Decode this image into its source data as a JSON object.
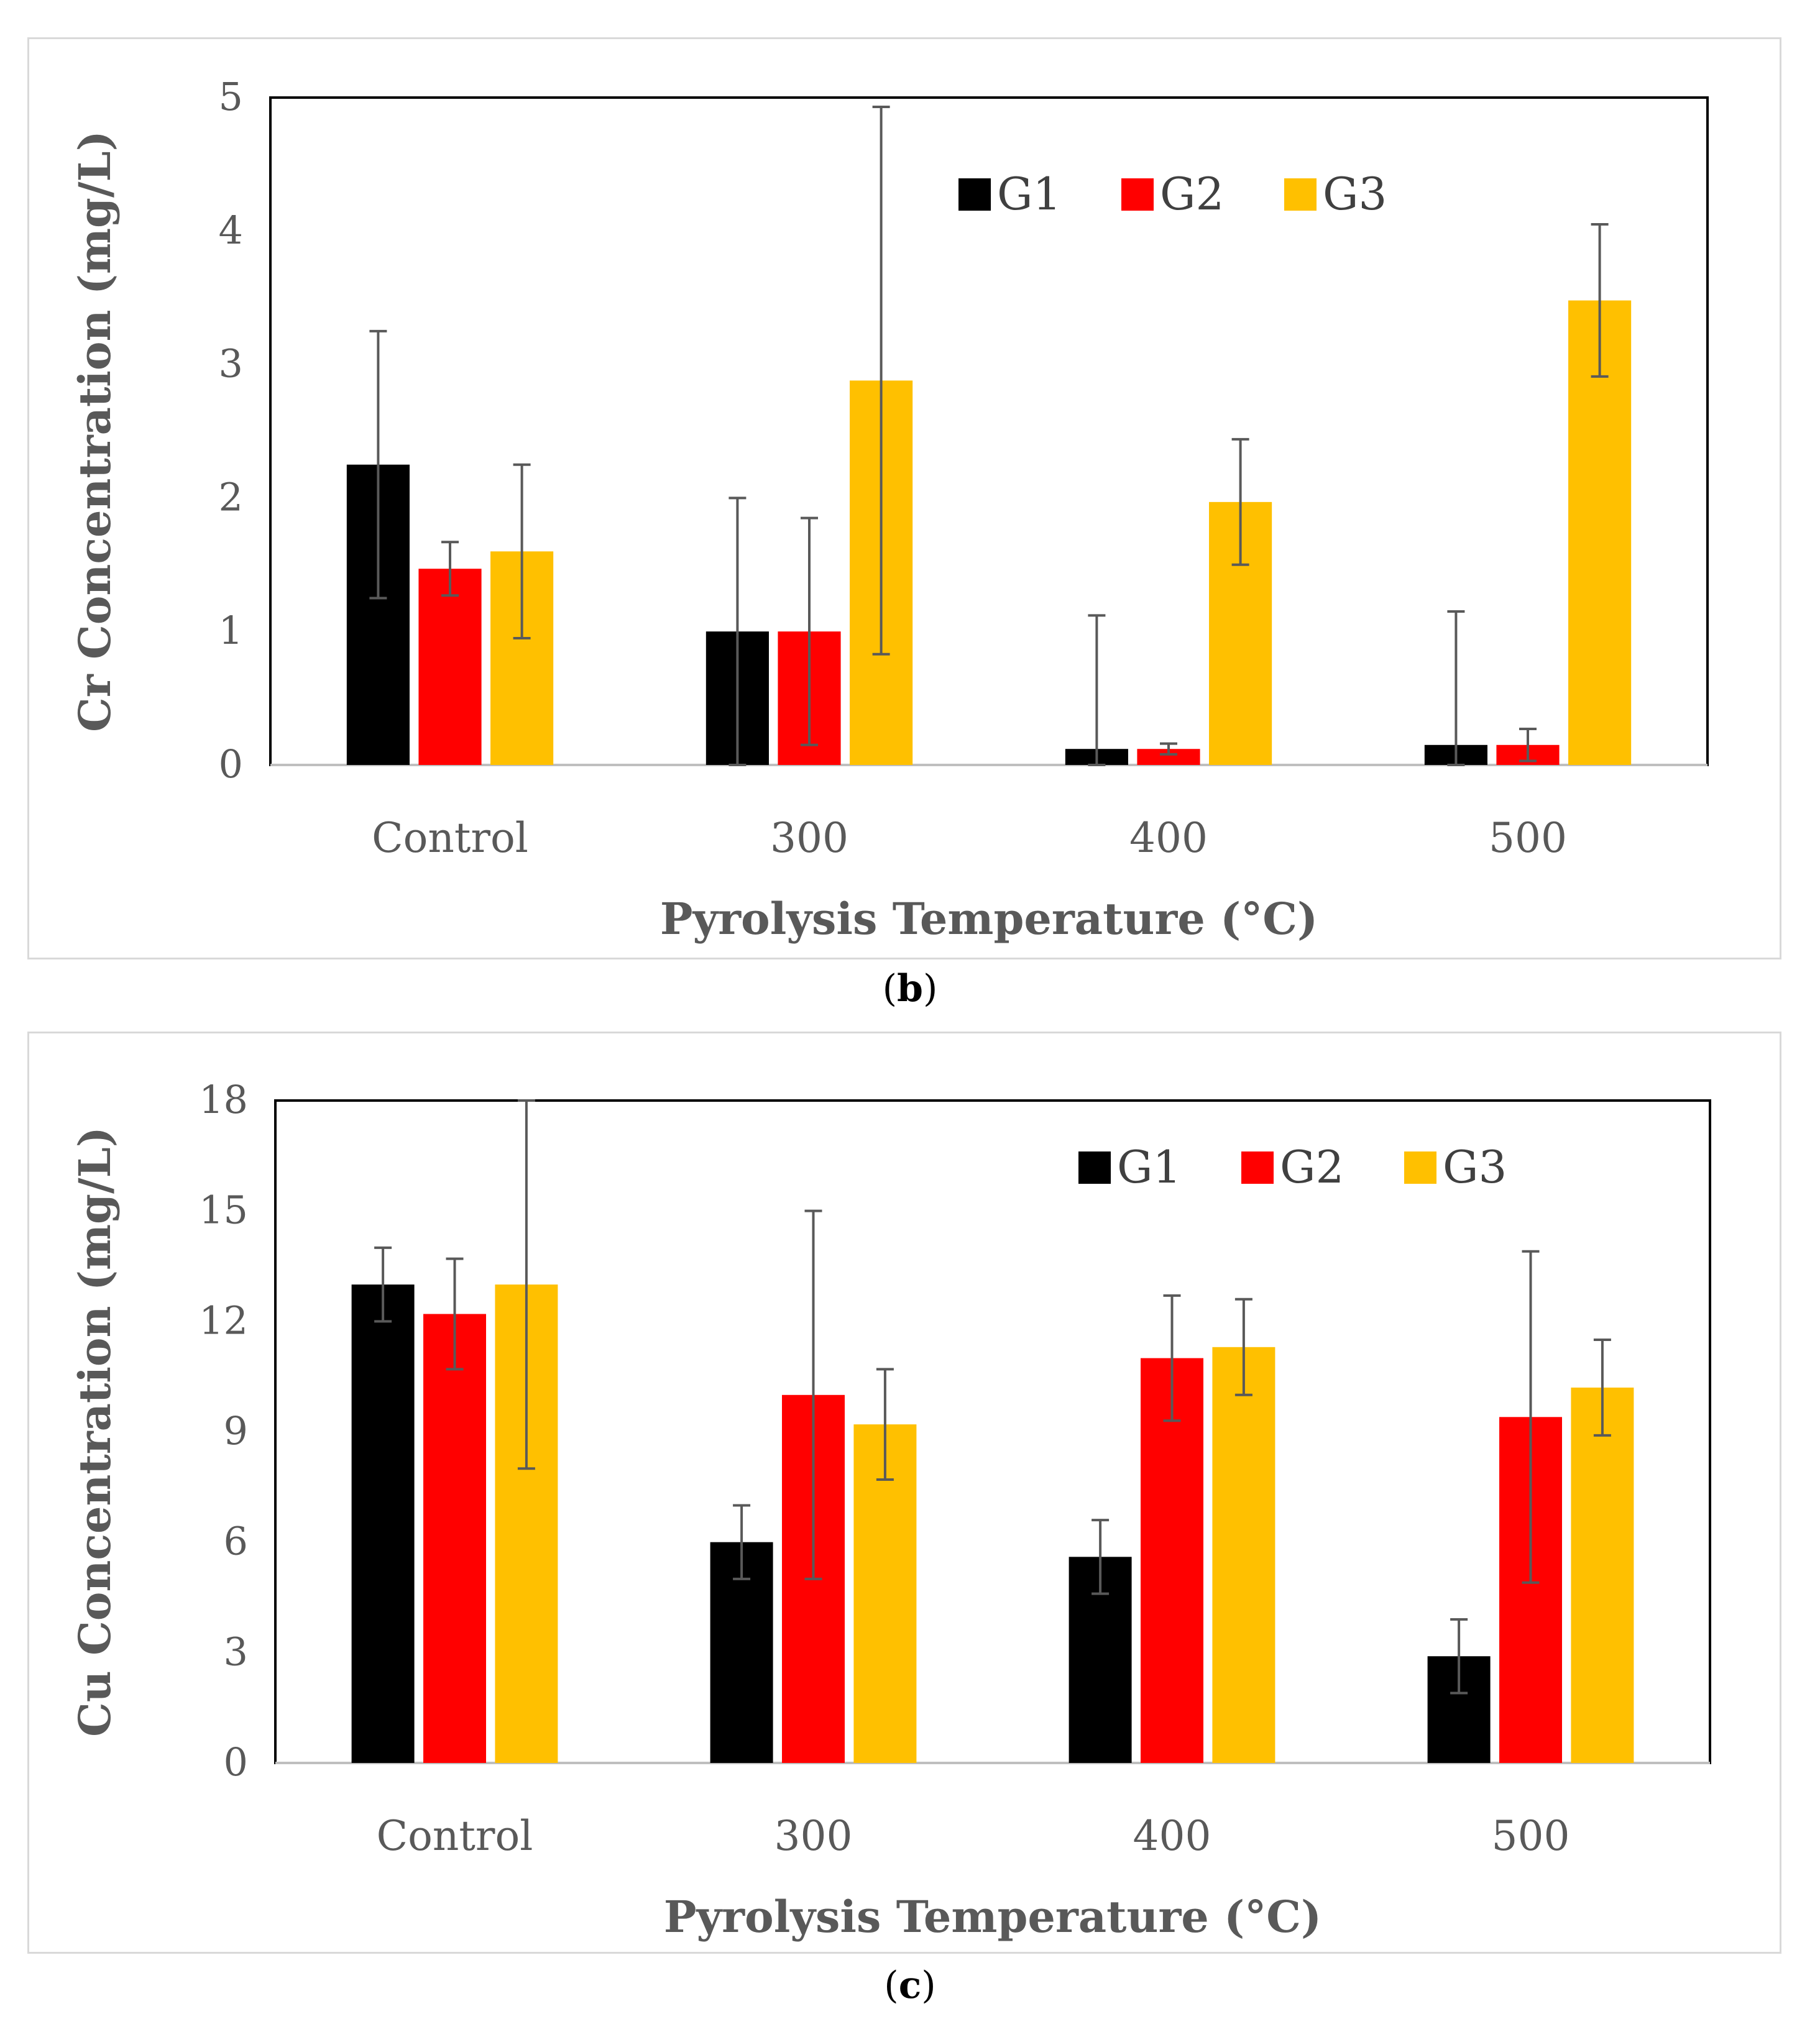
{
  "figure": {
    "caption_b": {
      "open": "(",
      "letter": "b",
      "close": ")"
    },
    "caption_c": {
      "open": "(",
      "letter": "c",
      "close": ")"
    }
  },
  "colors": {
    "G1": "#000000",
    "G2": "#ff0000",
    "G3": "#ffc000",
    "error_bar": "#595959",
    "axis_text": "#595959"
  },
  "chart_data": [
    {
      "id": "b",
      "type": "bar",
      "title": "",
      "xlabel": "Pyrolysis Temperature (°C)",
      "ylabel": "Cr Concentration (mg/L)",
      "categories": [
        "Control",
        "300",
        "400",
        "500"
      ],
      "ylim": [
        0,
        5
      ],
      "yticks": [
        0,
        1,
        2,
        3,
        4,
        5
      ],
      "grid": false,
      "legend_position": "top-right",
      "series": [
        {
          "name": "G1",
          "color": "#000000",
          "values": [
            2.25,
            1.0,
            0.12,
            0.15
          ],
          "errors": [
            1.0,
            1.0,
            1.0,
            1.0
          ]
        },
        {
          "name": "G2",
          "color": "#ff0000",
          "values": [
            1.47,
            1.0,
            0.12,
            0.15
          ],
          "errors": [
            0.2,
            0.85,
            0.04,
            0.12
          ]
        },
        {
          "name": "G3",
          "color": "#ffc000",
          "values": [
            1.6,
            2.88,
            1.97,
            3.48
          ],
          "errors": [
            0.65,
            2.05,
            0.47,
            0.57
          ]
        }
      ]
    },
    {
      "id": "c",
      "type": "bar",
      "title": "",
      "xlabel": "Pyrolysis Temperature (°C)",
      "ylabel": "Cu Concentration (mg/L)",
      "categories": [
        "Control",
        "300",
        "400",
        "500"
      ],
      "ylim": [
        0,
        18
      ],
      "yticks": [
        0,
        3,
        6,
        9,
        12,
        15,
        18
      ],
      "grid": false,
      "legend_position": "top-right",
      "series": [
        {
          "name": "G1",
          "color": "#000000",
          "values": [
            13.0,
            6.0,
            5.6,
            2.9
          ],
          "errors": [
            1.0,
            1.0,
            1.0,
            1.0
          ]
        },
        {
          "name": "G2",
          "color": "#ff0000",
          "values": [
            12.2,
            10.0,
            11.0,
            9.4
          ],
          "errors": [
            1.5,
            5.0,
            1.7,
            4.5
          ]
        },
        {
          "name": "G3",
          "color": "#ffc000",
          "values": [
            13.0,
            9.2,
            11.3,
            10.2
          ],
          "errors": [
            5.0,
            1.5,
            1.3,
            1.3
          ]
        }
      ]
    }
  ]
}
